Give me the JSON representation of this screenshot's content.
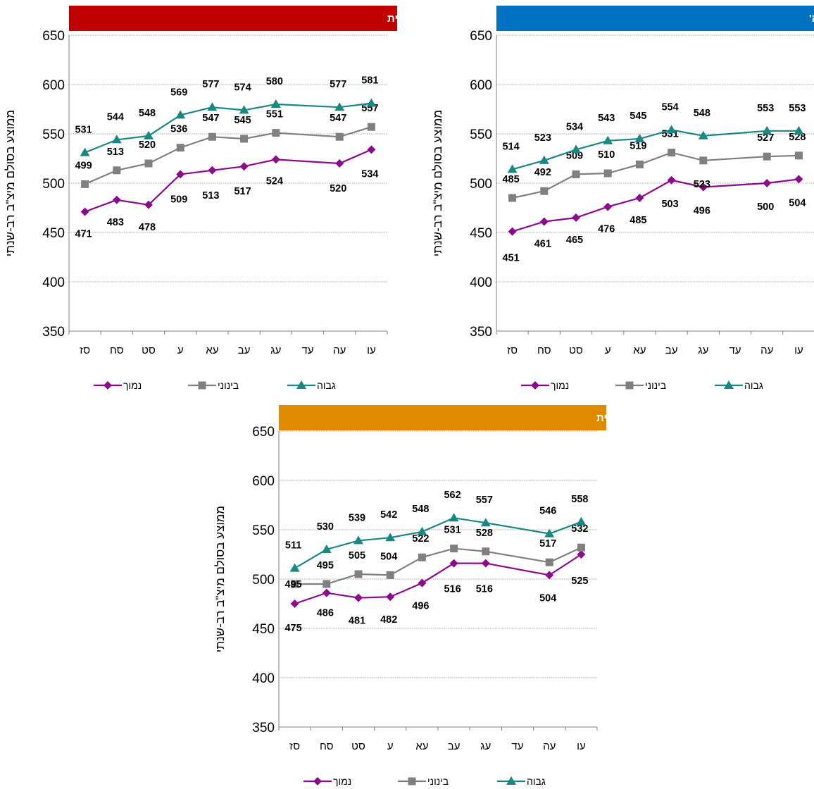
{
  "y_axis_label": "ממוצע בסולם מיצ\"ב רב-שנתי",
  "colors": {
    "low": "#8B0A8B",
    "mid": "#808080",
    "high": "#1A8783"
  },
  "chart_data": [
    {
      "type": "line",
      "title": "מתמטיקה ה' – דוברי עברית",
      "title_color": "#C00000",
      "categories": [
        "סז",
        "סח",
        "סט",
        "ע",
        "עא",
        "עב",
        "עג",
        "עד",
        "עה",
        "עו"
      ],
      "ylim": [
        350,
        650
      ],
      "yticks": [
        350,
        400,
        450,
        500,
        550,
        600,
        650
      ],
      "ylabel": "ממוצע בסולם מיצ\"ב רב-שנתי",
      "legend": "bottom",
      "series": [
        {
          "name": "נמוך",
          "key": "low",
          "marker": "diamond",
          "values": [
            471,
            483,
            478,
            509,
            513,
            517,
            524,
            null,
            520,
            534
          ]
        },
        {
          "name": "בינוני",
          "key": "mid",
          "marker": "square",
          "values": [
            499,
            513,
            520,
            536,
            547,
            545,
            551,
            null,
            547,
            557
          ]
        },
        {
          "name": "גבוה",
          "key": "high",
          "marker": "triangle",
          "values": [
            531,
            544,
            548,
            569,
            577,
            574,
            580,
            null,
            577,
            581
          ]
        }
      ]
    },
    {
      "type": "line",
      "title": "עברית ה'",
      "title_color": "#0070C0",
      "categories": [
        "סז",
        "סח",
        "סט",
        "ע",
        "עא",
        "עב",
        "עג",
        "עד",
        "עה",
        "עו"
      ],
      "ylim": [
        350,
        650
      ],
      "yticks": [
        350,
        400,
        450,
        500,
        550,
        600,
        650
      ],
      "ylabel": "ממוצע בסולם מיצ\"ב רב-שנתי",
      "legend": "bottom",
      "series": [
        {
          "name": "נמוך",
          "key": "low",
          "marker": "diamond",
          "values": [
            451,
            461,
            465,
            476,
            485,
            503,
            496,
            null,
            500,
            504
          ]
        },
        {
          "name": "בינוני",
          "key": "mid",
          "marker": "square",
          "values": [
            485,
            492,
            509,
            510,
            519,
            531,
            523,
            null,
            527,
            528
          ]
        },
        {
          "name": "גבוה",
          "key": "high",
          "marker": "triangle",
          "values": [
            514,
            523,
            534,
            543,
            545,
            554,
            548,
            null,
            553,
            553
          ]
        }
      ]
    },
    {
      "type": "line",
      "title": "אנגלית ה' – דוברי עברית",
      "title_color": "#E08A00",
      "categories": [
        "סז",
        "סח",
        "סט",
        "ע",
        "עא",
        "עב",
        "עג",
        "עד",
        "עה",
        "עו"
      ],
      "ylim": [
        350,
        650
      ],
      "yticks": [
        350,
        400,
        450,
        500,
        550,
        600,
        650
      ],
      "ylabel": "ממוצע בסולם מיצ\"ב רב-שנתי",
      "legend": "bottom",
      "series": [
        {
          "name": "נמוך",
          "key": "low",
          "marker": "diamond",
          "values": [
            475,
            486,
            481,
            482,
            496,
            516,
            516,
            null,
            504,
            525
          ]
        },
        {
          "name": "בינוני",
          "key": "mid",
          "marker": "square",
          "values": [
            495,
            495,
            505,
            504,
            522,
            531,
            528,
            null,
            517,
            532
          ]
        },
        {
          "name": "גבוה",
          "key": "high",
          "marker": "triangle",
          "values": [
            511,
            530,
            539,
            542,
            548,
            562,
            557,
            null,
            546,
            558
          ]
        }
      ]
    }
  ]
}
